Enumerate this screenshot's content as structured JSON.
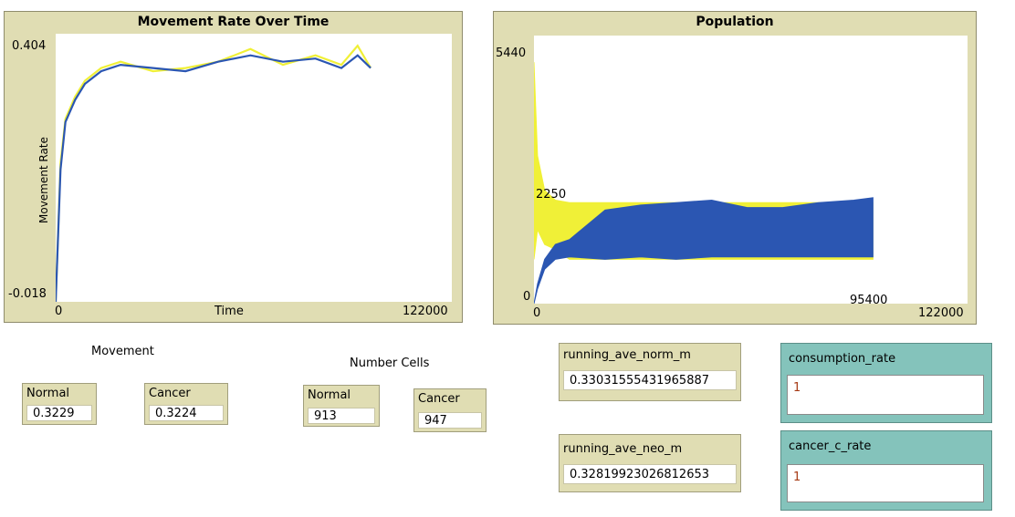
{
  "colors": {
    "normal_series": "#2b56b2",
    "cancer_series": "#f0f037",
    "plot_bg": "#e0ddb3",
    "input_bg": "#84c3bb"
  },
  "movement_plot": {
    "title": "Movement Rate Over Time",
    "ylabel": "Movement Rate",
    "xlabel": "Time",
    "x_min_label": "0",
    "x_max_label": "122000",
    "y_max_label": "0.404",
    "y_min_label": "-0.018"
  },
  "population_plot": {
    "title": "Population",
    "x_min_label": "0",
    "x_max_label": "122000",
    "y_max_label": "5440",
    "y_min_label": "0",
    "mid_label": "2250",
    "cursor_label": "95400"
  },
  "movement_section": {
    "heading": "Movement",
    "normal": {
      "name": "Normal",
      "value": "0.3229"
    },
    "cancer": {
      "name": "Cancer",
      "value": "0.3224"
    }
  },
  "cells_section": {
    "heading": "Number Cells",
    "normal": {
      "name": "Normal",
      "value": "913"
    },
    "cancer": {
      "name": "Cancer",
      "value": "947"
    }
  },
  "running_ave_norm_m": {
    "name": "running_ave_norm_m",
    "value": "0.33031555431965887"
  },
  "running_ave_neo_m": {
    "name": "running_ave_neo_m",
    "value": "0.32819923026812653"
  },
  "consumption_rate": {
    "name": "consumption_rate",
    "value": "1"
  },
  "cancer_c_rate": {
    "name": "cancer_c_rate",
    "value": "1"
  },
  "chart_data": [
    {
      "type": "line",
      "title": "Movement Rate Over Time",
      "xlabel": "Time",
      "ylabel": "Movement Rate",
      "xlim": [
        0,
        122000
      ],
      "ylim": [
        -0.018,
        0.404
      ],
      "series": [
        {
          "color": "#f0f037",
          "x": [
            0,
            1500,
            3000,
            6000,
            9000,
            14000,
            20000,
            30000,
            40000,
            50000,
            60000,
            70000,
            80000,
            88000,
            93000,
            97000
          ],
          "values": [
            -0.018,
            0.2,
            0.27,
            0.305,
            0.33,
            0.35,
            0.36,
            0.345,
            0.35,
            0.36,
            0.38,
            0.355,
            0.37,
            0.355,
            0.385,
            0.35
          ]
        },
        {
          "color": "#2b56b2",
          "x": [
            0,
            1500,
            3000,
            6000,
            9000,
            14000,
            20000,
            30000,
            40000,
            50000,
            60000,
            70000,
            80000,
            88000,
            93000,
            97000
          ],
          "values": [
            -0.018,
            0.19,
            0.265,
            0.3,
            0.325,
            0.345,
            0.355,
            0.35,
            0.345,
            0.36,
            0.37,
            0.36,
            0.365,
            0.35,
            0.37,
            0.35
          ]
        }
      ]
    },
    {
      "type": "area",
      "title": "Population",
      "xlim": [
        0,
        122000
      ],
      "ylim": [
        0,
        5440
      ],
      "series": [
        {
          "color": "#f0f037",
          "x": [
            0,
            1000,
            3000,
            6000,
            10000,
            20000,
            30000,
            40000,
            50000,
            60000,
            70000,
            80000,
            90000,
            95400
          ],
          "low": [
            900,
            1500,
            1200,
            1100,
            900,
            900,
            900,
            900,
            900,
            900,
            900,
            900,
            900,
            900
          ],
          "high": [
            4900,
            3000,
            2300,
            2100,
            2050,
            2050,
            2050,
            2050,
            2050,
            2050,
            2050,
            2050,
            2050,
            2050
          ]
        },
        {
          "color": "#2b56b2",
          "x": [
            0,
            1000,
            3000,
            6000,
            10000,
            20000,
            30000,
            40000,
            50000,
            60000,
            70000,
            80000,
            90000,
            95400
          ],
          "low": [
            0,
            300,
            700,
            900,
            950,
            900,
            950,
            900,
            950,
            950,
            950,
            950,
            950,
            950
          ],
          "high": [
            0,
            400,
            900,
            1200,
            1300,
            1900,
            2000,
            2050,
            2100,
            1950,
            1950,
            2050,
            2100,
            2150
          ]
        }
      ]
    }
  ]
}
